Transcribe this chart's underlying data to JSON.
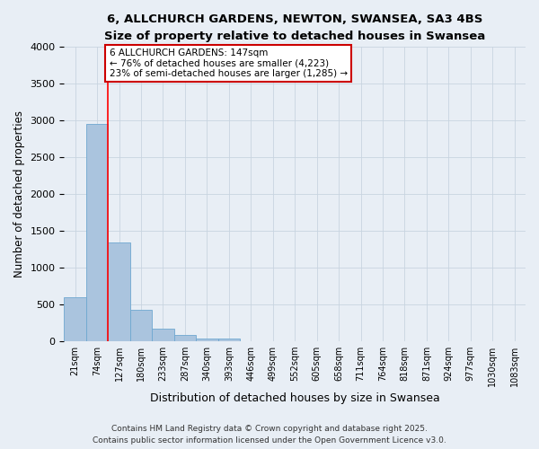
{
  "title1": "6, ALLCHURCH GARDENS, NEWTON, SWANSEA, SA3 4BS",
  "title2": "Size of property relative to detached houses in Swansea",
  "xlabel": "Distribution of detached houses by size in Swansea",
  "ylabel": "Number of detached properties",
  "bar_values": [
    600,
    2960,
    1340,
    430,
    170,
    90,
    40,
    40,
    0,
    0,
    0,
    0,
    0,
    0,
    0,
    0,
    0,
    0,
    0,
    0,
    0
  ],
  "bar_labels": [
    "21sqm",
    "74sqm",
    "127sqm",
    "180sqm",
    "233sqm",
    "287sqm",
    "340sqm",
    "393sqm",
    "446sqm",
    "499sqm",
    "552sqm",
    "605sqm",
    "658sqm",
    "711sqm",
    "764sqm",
    "818sqm",
    "871sqm",
    "924sqm",
    "977sqm",
    "1030sqm",
    "1083sqm"
  ],
  "bar_color": "#aac4de",
  "bar_edge_color": "#6fa8d0",
  "red_line_x": 1.5,
  "annotation_text": "6 ALLCHURCH GARDENS: 147sqm\n← 76% of detached houses are smaller (4,223)\n23% of semi-detached houses are larger (1,285) →",
  "annotation_box_facecolor": "#ffffff",
  "annotation_box_edgecolor": "#cc0000",
  "ylim": [
    0,
    4000
  ],
  "yticks": [
    0,
    500,
    1000,
    1500,
    2000,
    2500,
    3000,
    3500,
    4000
  ],
  "fig_facecolor": "#e8eef5",
  "plot_facecolor": "#e8eef5",
  "grid_color": "#c8d4e0",
  "footer1": "Contains HM Land Registry data © Crown copyright and database right 2025.",
  "footer2": "Contains public sector information licensed under the Open Government Licence v3.0."
}
